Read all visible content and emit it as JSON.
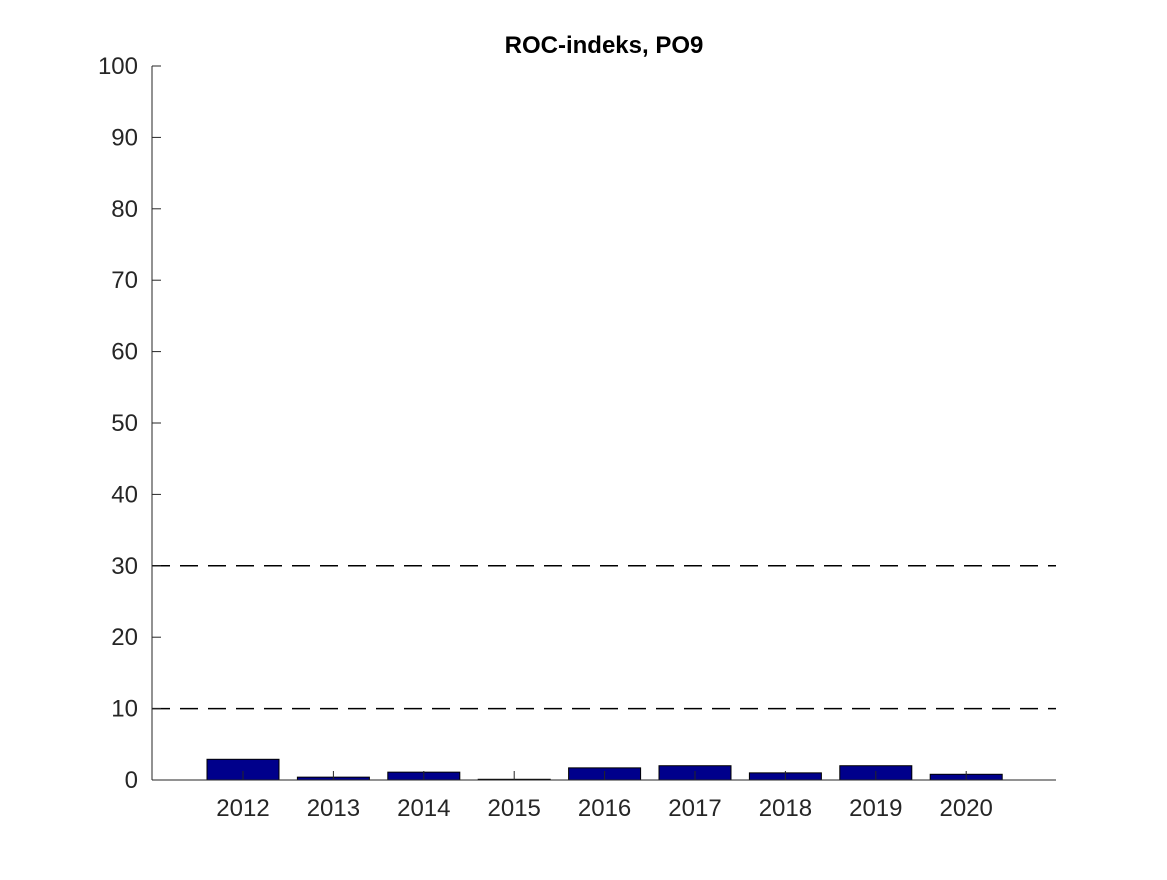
{
  "chart_data": {
    "type": "bar",
    "title": "ROC-indeks, PO9",
    "xlabel": "",
    "ylabel": "",
    "categories": [
      "2012",
      "2013",
      "2014",
      "2015",
      "2016",
      "2017",
      "2018",
      "2019",
      "2020"
    ],
    "values": [
      2.9,
      0.4,
      1.1,
      0.1,
      1.7,
      2.0,
      1.0,
      2.0,
      0.8
    ],
    "ylim": [
      0,
      100
    ],
    "yticks": [
      0,
      10,
      20,
      30,
      40,
      50,
      60,
      70,
      80,
      90,
      100
    ],
    "reference_lines": [
      10,
      30
    ],
    "grid": false,
    "bar_color": "#00008B"
  }
}
